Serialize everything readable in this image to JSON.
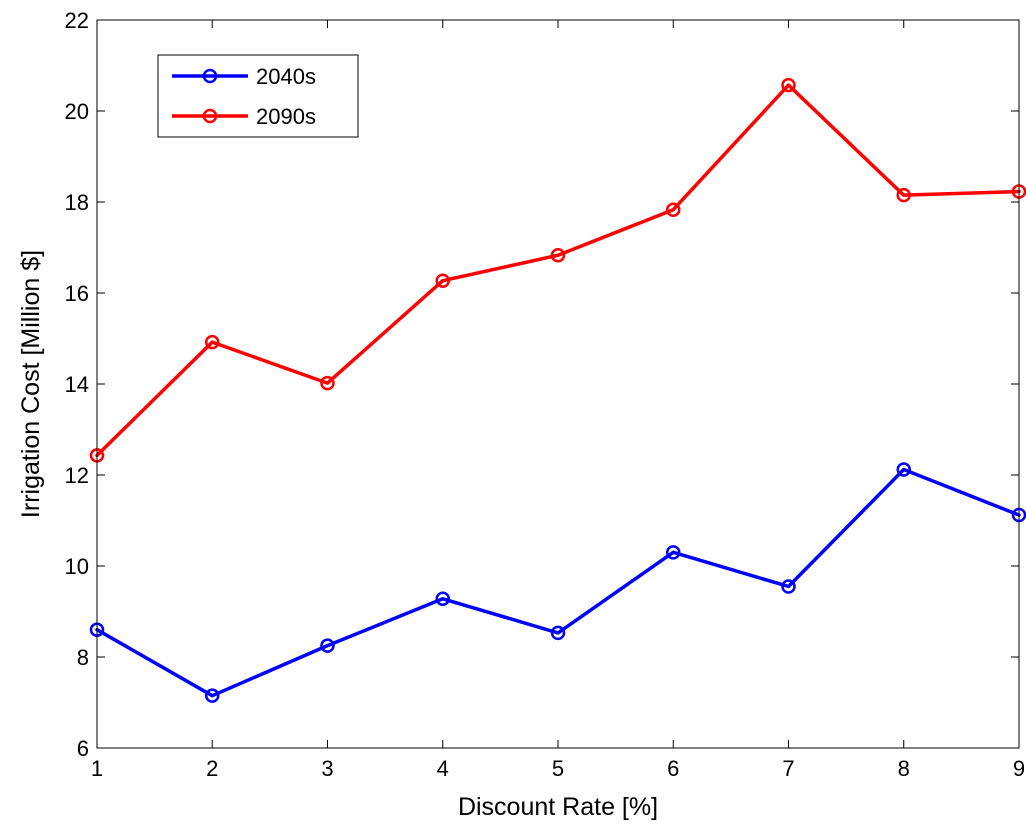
{
  "chart_data": {
    "type": "line",
    "title": "",
    "xlabel": "Discount Rate [%]",
    "ylabel": "Irrigation Cost [Million $]",
    "xlim": [
      1,
      9
    ],
    "ylim": [
      6,
      22
    ],
    "xticks": [
      1,
      2,
      3,
      4,
      5,
      6,
      7,
      8,
      9
    ],
    "yticks": [
      6,
      8,
      10,
      12,
      14,
      16,
      18,
      20,
      22
    ],
    "xtick_labels": [
      "1",
      "2",
      "3",
      "4",
      "5",
      "6",
      "7",
      "8",
      "9"
    ],
    "ytick_labels": [
      "6",
      "8",
      "10",
      "12",
      "14",
      "16",
      "18",
      "20",
      "22"
    ],
    "grid": false,
    "legend_position": "top-left",
    "x": [
      1,
      2,
      3,
      4,
      5,
      6,
      7,
      8,
      9
    ],
    "series": [
      {
        "name": "2040s",
        "color": "#0000ff",
        "marker": "circle",
        "values": [
          8.6,
          7.15,
          8.25,
          9.28,
          8.53,
          10.3,
          9.55,
          12.12,
          11.12
        ]
      },
      {
        "name": "2090s",
        "color": "#ff0000",
        "marker": "circle",
        "values": [
          12.43,
          14.92,
          14.02,
          16.27,
          16.83,
          17.83,
          20.57,
          18.15,
          18.23
        ]
      }
    ]
  }
}
